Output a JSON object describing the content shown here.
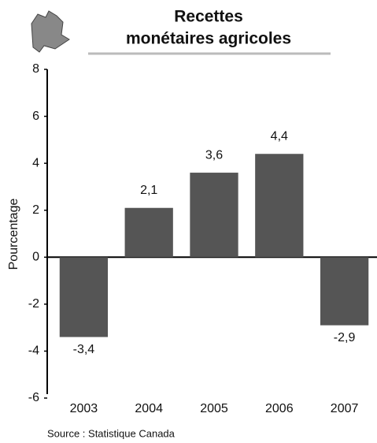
{
  "chart_data": {
    "type": "bar",
    "title": [
      "Recettes",
      "monétaires agricoles"
    ],
    "y_label": "Pourcentage",
    "categories": [
      "2003",
      "2004",
      "2005",
      "2006",
      "2007"
    ],
    "values": [
      -3.4,
      2.1,
      3.6,
      4.4,
      -2.9
    ],
    "value_labels": [
      "-3,4",
      "2,1",
      "3,6",
      "4,4",
      "-2,9"
    ],
    "color": "#555555",
    "ylim": [
      -6,
      8
    ],
    "yticks": [
      -6,
      -4,
      -2,
      0,
      2,
      4,
      6,
      8
    ],
    "source": "Source : Statistique Canada"
  }
}
